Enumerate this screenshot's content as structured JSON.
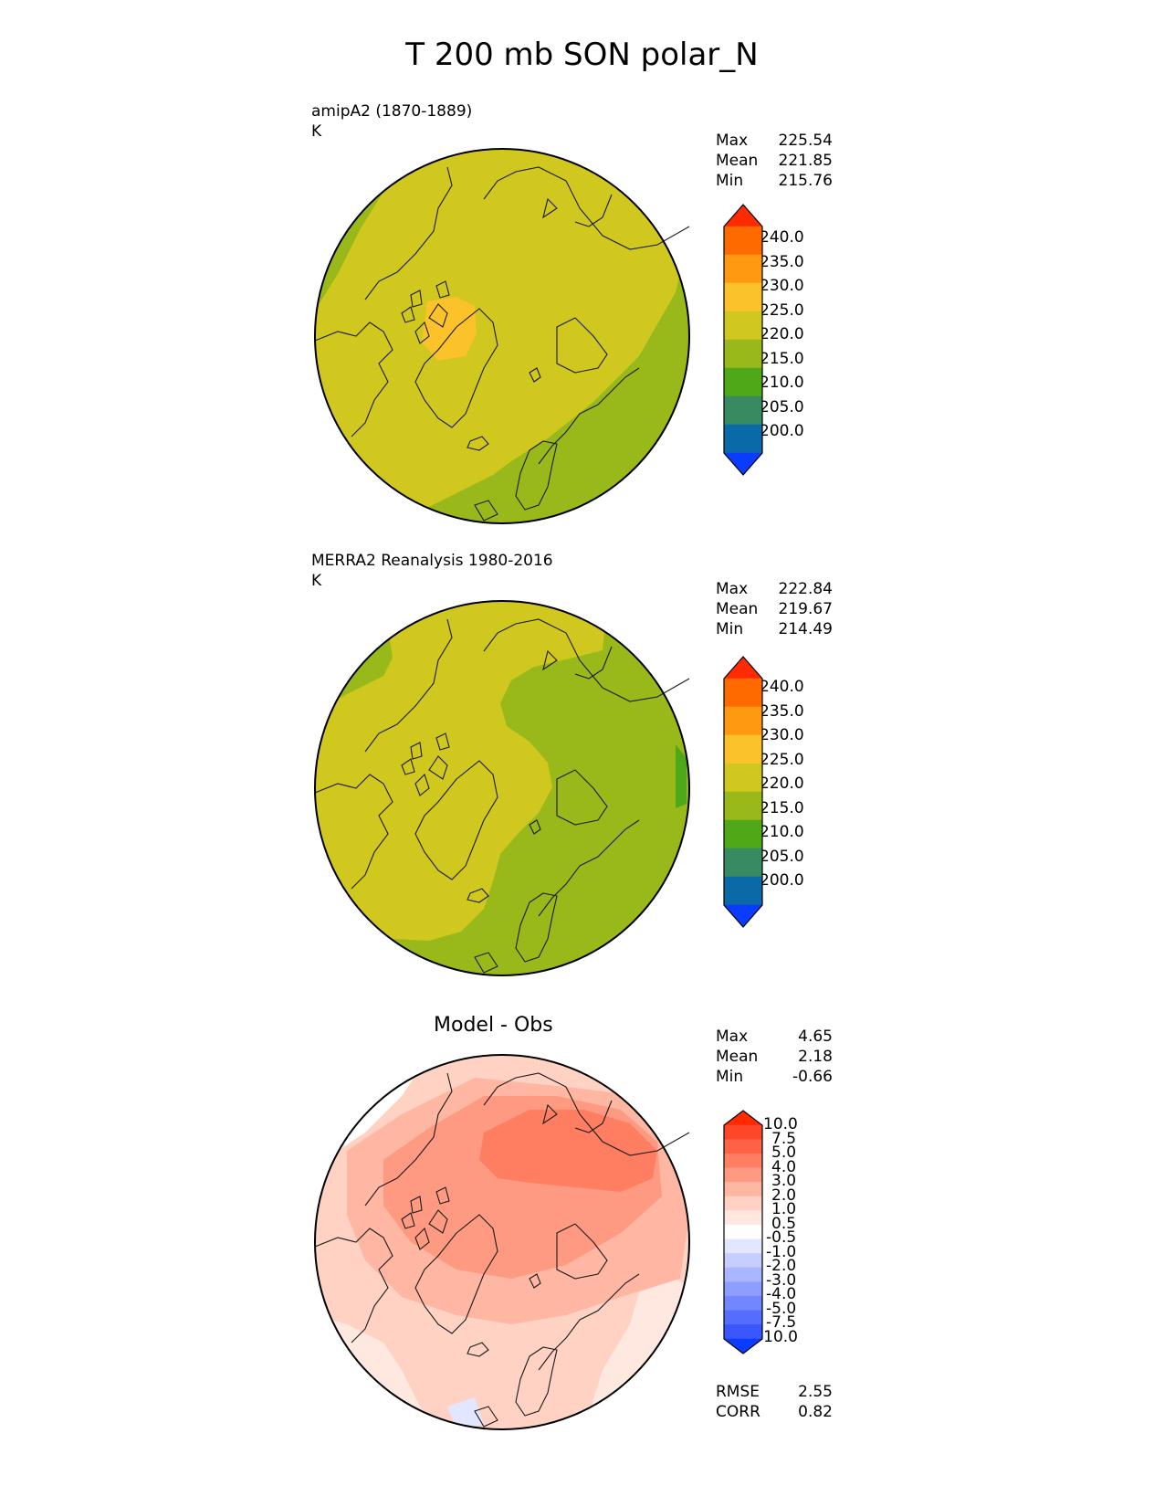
{
  "title": "T 200 mb SON polar_N",
  "panels": [
    {
      "label_line1": "amipA2 (1870-1889)",
      "label_line2": "K",
      "stats": [
        {
          "name": "Max",
          "value": "225.54"
        },
        {
          "name": "Mean",
          "value": "221.85"
        },
        {
          "name": "Min",
          "value": "215.76"
        }
      ],
      "colorbar_labels": [
        "240.0",
        "235.0",
        "230.0",
        "225.0",
        "220.0",
        "215.0",
        "210.0",
        "205.0",
        "200.0"
      ]
    },
    {
      "label_line1": "MERRA2 Reanalysis 1980-2016",
      "label_line2": "K",
      "stats": [
        {
          "name": "Max",
          "value": "222.84"
        },
        {
          "name": "Mean",
          "value": "219.67"
        },
        {
          "name": "Min",
          "value": "214.49"
        }
      ],
      "colorbar_labels": [
        "240.0",
        "235.0",
        "230.0",
        "225.0",
        "220.0",
        "215.0",
        "210.0",
        "205.0",
        "200.0"
      ]
    },
    {
      "title": "Model - Obs",
      "stats": [
        {
          "name": "Max",
          "value": "4.65"
        },
        {
          "name": "Mean",
          "value": "2.18"
        },
        {
          "name": "Min",
          "value": "-0.66"
        }
      ],
      "colorbar_labels": [
        "10.0",
        "7.5",
        "5.0",
        "4.0",
        "3.0",
        "2.0",
        "1.0",
        "0.5",
        "-0.5",
        "-1.0",
        "-2.0",
        "-3.0",
        "-4.0",
        "-5.0",
        "-7.5",
        "-10.0"
      ],
      "metrics": [
        {
          "name": "RMSE",
          "value": "2.55"
        },
        {
          "name": "CORR",
          "value": "0.82"
        }
      ]
    }
  ],
  "colors": {
    "abs_colorbar": [
      "#ff2a00",
      "#ff6a00",
      "#ff9a10",
      "#fcc22a",
      "#d0c81e",
      "#99b81a",
      "#4ea818",
      "#388a60",
      "#0a6aa8",
      "#0a3cff"
    ],
    "diff_colorbar": [
      "#ff2a00",
      "#ff4628",
      "#ff6244",
      "#ff7e62",
      "#ff9a82",
      "#ffb6a2",
      "#ffd2c4",
      "#ffe8e0",
      "#ffffff",
      "#e2e6ff",
      "#c6ceff",
      "#aab6ff",
      "#8e9eff",
      "#7286ff",
      "#566eff",
      "#3a56ff",
      "#0a3cff"
    ]
  }
}
